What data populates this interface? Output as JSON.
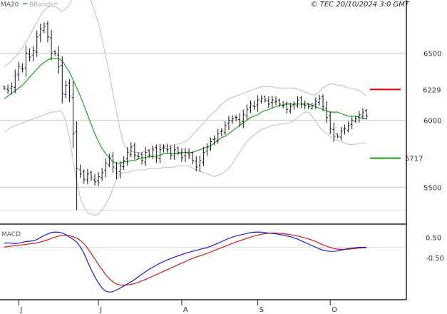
{
  "copyright": "© TEC 20/10/2024 3:0 GMT",
  "legend": {
    "ma_label": "MA20",
    "bb_label": "BBands",
    "ma_color": "#1fa31f",
    "bb_color": "#bdbdbd"
  },
  "macd_panel": {
    "label": "MACD",
    "macd_color": "#1a1acc",
    "signal_color": "#cc1a1a",
    "axis_ticks": [
      {
        "label": "0.50",
        "value": 0.5
      },
      {
        "label": "-0.50",
        "value": -0.5
      }
    ]
  },
  "levels": [
    {
      "label": "6229",
      "value": 6229,
      "color": "#dd0000"
    },
    {
      "label": "5717",
      "value": 5717,
      "color": "#11a011"
    }
  ],
  "price_axis": [
    {
      "label": "6500",
      "value": 6500
    },
    {
      "label": "6000",
      "value": 6000
    },
    {
      "label": "5500",
      "value": 5500
    }
  ],
  "month_ticks": [
    {
      "label": "J",
      "index": 4
    },
    {
      "label": "J",
      "index": 26
    },
    {
      "label": "A",
      "index": 49
    },
    {
      "label": "S",
      "index": 70
    },
    {
      "label": "O",
      "index": 90
    }
  ],
  "chart_data": {
    "type": "ohlc",
    "ylim": [
      5300,
      6800
    ],
    "close": [
      6240,
      6220,
      6250,
      6330,
      6400,
      6380,
      6500,
      6470,
      6520,
      6620,
      6680,
      6700,
      6620,
      6500,
      6500,
      6400,
      6200,
      6260,
      6180,
      5900,
      5640,
      5600,
      5560,
      5600,
      5570,
      5540,
      5580,
      5610,
      5680,
      5720,
      5650,
      5600,
      5660,
      5700,
      5760,
      5800,
      5740,
      5730,
      5700,
      5760,
      5740,
      5780,
      5720,
      5780,
      5800,
      5780,
      5740,
      5780,
      5760,
      5720,
      5760,
      5740,
      5700,
      5650,
      5700,
      5760,
      5800,
      5840,
      5860,
      5900,
      5920,
      5960,
      6000,
      6010,
      6020,
      5980,
      6040,
      6080,
      6120,
      6100,
      6150,
      6160,
      6150,
      6120,
      6150,
      6140,
      6120,
      6110,
      6080,
      6100,
      6120,
      6150,
      6120,
      6110,
      6100,
      6110,
      6140,
      6160,
      6100,
      6020,
      5940,
      5880,
      5880,
      5920,
      5940,
      5960,
      6000,
      6010,
      6040,
      6060,
      6030
    ],
    "ma20": [
      6160,
      6180,
      6200,
      6220,
      6240,
      6260,
      6290,
      6320,
      6350,
      6380,
      6410,
      6430,
      6450,
      6460,
      6460,
      6460,
      6440,
      6400,
      6360,
      6300,
      6240,
      6180,
      6110,
      6040,
      5970,
      5900,
      5840,
      5790,
      5750,
      5720,
      5690,
      5680,
      5680,
      5690,
      5690,
      5700,
      5700,
      5710,
      5720,
      5720,
      5730,
      5730,
      5730,
      5740,
      5750,
      5750,
      5750,
      5750,
      5750,
      5760,
      5760,
      5760,
      5760,
      5770,
      5780,
      5790,
      5800,
      5810,
      5830,
      5850,
      5870,
      5880,
      5900,
      5920,
      5940,
      5960,
      5980,
      6000,
      6020,
      6030,
      6040,
      6060,
      6070,
      6080,
      6090,
      6100,
      6110,
      6110,
      6120,
      6120,
      6120,
      6120,
      6120,
      6120,
      6120,
      6110,
      6100,
      6090,
      6080,
      6070,
      6060,
      6060,
      6060,
      6050,
      6040,
      6030,
      6030,
      6030,
      6020,
      6010,
      6010
    ],
    "bb_upper": [
      6400,
      6420,
      6440,
      6470,
      6500,
      6540,
      6580,
      6630,
      6680,
      6730,
      6780,
      6820,
      6840,
      6850,
      6850,
      6830,
      6810,
      6830,
      6860,
      6930,
      6980,
      7000,
      6990,
      6950,
      6890,
      6810,
      6720,
      6610,
      6480,
      6350,
      6200,
      6060,
      5920,
      5820,
      5780,
      5770,
      5760,
      5760,
      5760,
      5770,
      5780,
      5790,
      5790,
      5790,
      5800,
      5810,
      5810,
      5820,
      5820,
      5830,
      5840,
      5860,
      5890,
      5920,
      5950,
      5980,
      6010,
      6040,
      6060,
      6090,
      6120,
      6140,
      6160,
      6170,
      6180,
      6190,
      6200,
      6210,
      6220,
      6230,
      6240,
      6250,
      6250,
      6250,
      6250,
      6240,
      6240,
      6240,
      6240,
      6240,
      6240,
      6230,
      6220,
      6210,
      6200,
      6190,
      6190,
      6210,
      6240,
      6260,
      6270,
      6270,
      6260,
      6260,
      6250,
      6240,
      6240,
      6230,
      6220,
      6200,
      6180
    ],
    "bb_lower": [
      5910,
      5930,
      5950,
      5960,
      5970,
      5980,
      5990,
      6000,
      6010,
      6020,
      6030,
      6040,
      6050,
      6060,
      6060,
      6070,
      6060,
      5990,
      5870,
      5700,
      5540,
      5420,
      5350,
      5310,
      5300,
      5290,
      5300,
      5330,
      5370,
      5420,
      5490,
      5560,
      5600,
      5610,
      5610,
      5620,
      5620,
      5630,
      5630,
      5630,
      5640,
      5640,
      5640,
      5640,
      5650,
      5650,
      5650,
      5650,
      5660,
      5660,
      5660,
      5660,
      5640,
      5630,
      5620,
      5610,
      5600,
      5590,
      5580,
      5590,
      5600,
      5620,
      5640,
      5680,
      5720,
      5760,
      5800,
      5840,
      5870,
      5890,
      5910,
      5930,
      5940,
      5950,
      5960,
      5960,
      5970,
      5970,
      5980,
      5980,
      6000,
      6020,
      6040,
      6060,
      6060,
      6030,
      5990,
      5950,
      5920,
      5900,
      5880,
      5860,
      5850,
      5840,
      5830,
      5820,
      5820,
      5820,
      5830,
      5830,
      5830
    ],
    "macd": [
      0.2,
      0.22,
      0.2,
      0.18,
      0.2,
      0.25,
      0.28,
      0.3,
      0.32,
      0.38,
      0.48,
      0.58,
      0.66,
      0.72,
      0.75,
      0.74,
      0.7,
      0.62,
      0.5,
      0.4,
      0.25,
      0.02,
      -0.3,
      -0.7,
      -1.1,
      -1.45,
      -1.75,
      -2.0,
      -2.15,
      -2.2,
      -2.18,
      -2.1,
      -2.0,
      -1.9,
      -1.8,
      -1.7,
      -1.58,
      -1.45,
      -1.32,
      -1.2,
      -1.08,
      -0.98,
      -0.88,
      -0.78,
      -0.7,
      -0.62,
      -0.55,
      -0.48,
      -0.42,
      -0.36,
      -0.3,
      -0.24,
      -0.2,
      -0.15,
      -0.1,
      -0.06,
      -0.02,
      0.05,
      0.12,
      0.2,
      0.28,
      0.36,
      0.44,
      0.5,
      0.56,
      0.6,
      0.64,
      0.68,
      0.72,
      0.74,
      0.75,
      0.74,
      0.72,
      0.7,
      0.68,
      0.66,
      0.63,
      0.6,
      0.56,
      0.52,
      0.46,
      0.4,
      0.32,
      0.24,
      0.16,
      0.08,
      0.0,
      -0.08,
      -0.14,
      -0.18,
      -0.2,
      -0.2,
      -0.18,
      -0.14,
      -0.1,
      -0.06,
      -0.04,
      -0.02,
      0.0,
      0.0,
      0.0
    ],
    "signal": [
      0.0,
      0.04,
      0.06,
      0.08,
      0.1,
      0.12,
      0.15,
      0.17,
      0.19,
      0.22,
      0.26,
      0.31,
      0.37,
      0.44,
      0.5,
      0.55,
      0.58,
      0.59,
      0.57,
      0.52,
      0.45,
      0.34,
      0.18,
      -0.04,
      -0.3,
      -0.57,
      -0.84,
      -1.1,
      -1.34,
      -1.54,
      -1.7,
      -1.8,
      -1.85,
      -1.86,
      -1.85,
      -1.82,
      -1.78,
      -1.72,
      -1.65,
      -1.58,
      -1.5,
      -1.42,
      -1.34,
      -1.26,
      -1.18,
      -1.1,
      -1.02,
      -0.94,
      -0.86,
      -0.78,
      -0.7,
      -0.62,
      -0.55,
      -0.48,
      -0.42,
      -0.36,
      -0.3,
      -0.23,
      -0.16,
      -0.09,
      -0.02,
      0.05,
      0.12,
      0.19,
      0.26,
      0.32,
      0.38,
      0.44,
      0.5,
      0.55,
      0.6,
      0.64,
      0.67,
      0.69,
      0.7,
      0.7,
      0.69,
      0.67,
      0.65,
      0.62,
      0.59,
      0.55,
      0.51,
      0.46,
      0.41,
      0.35,
      0.28,
      0.2,
      0.12,
      0.05,
      -0.01,
      -0.06,
      -0.09,
      -0.1,
      -0.1,
      -0.09,
      -0.08,
      -0.06,
      -0.04,
      -0.03,
      -0.02
    ],
    "macd_ylim": [
      -2.4,
      1.0
    ]
  }
}
